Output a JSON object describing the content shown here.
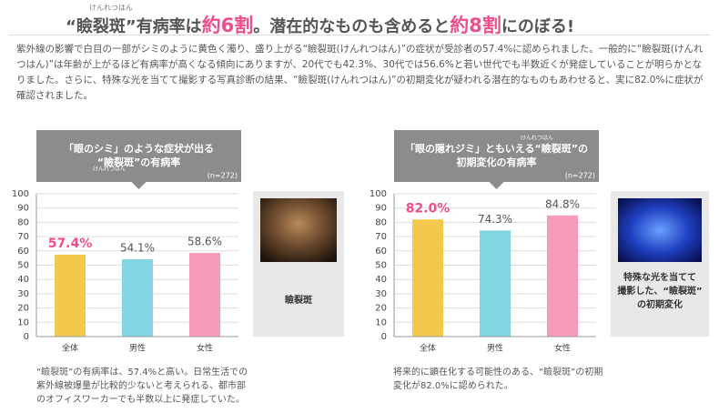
{
  "headline": {
    "ruby": "けんれつはん",
    "parts": [
      "“瞼裂斑”有病率は",
      "約6割",
      "。潜在的なものも含めると",
      "約8割",
      "にのぼる!"
    ]
  },
  "paragraph": "紫外線の影響で白目の一部がシミのように黄色く濁り、盛り上がる“瞼裂斑(けんれつはん)”の症状が受診者の57.4%に認められました。一般的に“瞼裂斑(けんれつはん)”は年齢が上がるほど有病率が高くなる傾向にありますが、20代でも42.3%、30代では56.6%と若い世代でも半数近くが発症していることが明らかとなりました。さらに、特殊な光を当てて撮影する写真診断の結果、“瞼裂斑(けんれつはん)”の初期変化が疑われる潜在的なものもあわせると、実に82.0%に症状が確認されました。",
  "chart_data": [
    {
      "type": "bar",
      "title": [
        "「眼のシミ」のような症状が出る",
        "“瞼裂斑”の有病率"
      ],
      "title_ruby": "けんれつはん",
      "note": "(n=272)",
      "categories": [
        "全体",
        "男性",
        "女性"
      ],
      "values": [
        57.4,
        54.1,
        58.6
      ],
      "value_labels": [
        "57.4%",
        "54.1%",
        "58.6%"
      ],
      "colors": [
        "#f2c94a",
        "#82d4e2",
        "#f79bbb"
      ],
      "label_colors": [
        "#ee4f8c",
        "#555555",
        "#555555"
      ],
      "ylim": [
        0,
        100
      ],
      "yticks": [
        0,
        10,
        20,
        30,
        40,
        50,
        60,
        70,
        80,
        90,
        100
      ],
      "grid": true,
      "photo_caption": [
        "瞼裂斑"
      ],
      "caption": "“瞼裂斑”の有病率は、57.4%と高い。日常生活での紫外線被爆量が比較的少ないと考えられる、都市部のオフィスワーカーでも半数以上に発症していた。"
    },
    {
      "type": "bar",
      "title": [
        "「眼の隠れジミ」ともいえる“瞼裂斑”の",
        "初期変化の有病率"
      ],
      "title_ruby": "けんれつはん",
      "note": "(n=272)",
      "categories": [
        "全体",
        "男性",
        "女性"
      ],
      "values": [
        82.0,
        74.3,
        84.8
      ],
      "value_labels": [
        "82.0%",
        "74.3%",
        "84.8%"
      ],
      "colors": [
        "#f2c94a",
        "#82d4e2",
        "#f79bbb"
      ],
      "label_colors": [
        "#ee4f8c",
        "#555555",
        "#555555"
      ],
      "ylim": [
        0,
        100
      ],
      "yticks": [
        0,
        10,
        20,
        30,
        40,
        50,
        60,
        70,
        80,
        90,
        100
      ],
      "grid": true,
      "photo_caption": [
        "特殊な光を当てて",
        "撮影した、“瞼裂斑”",
        "の初期変化"
      ],
      "caption": "将来的に顕在化する可能性のある、“瞼裂斑”の初期変化が82.0%に認められた。"
    }
  ]
}
